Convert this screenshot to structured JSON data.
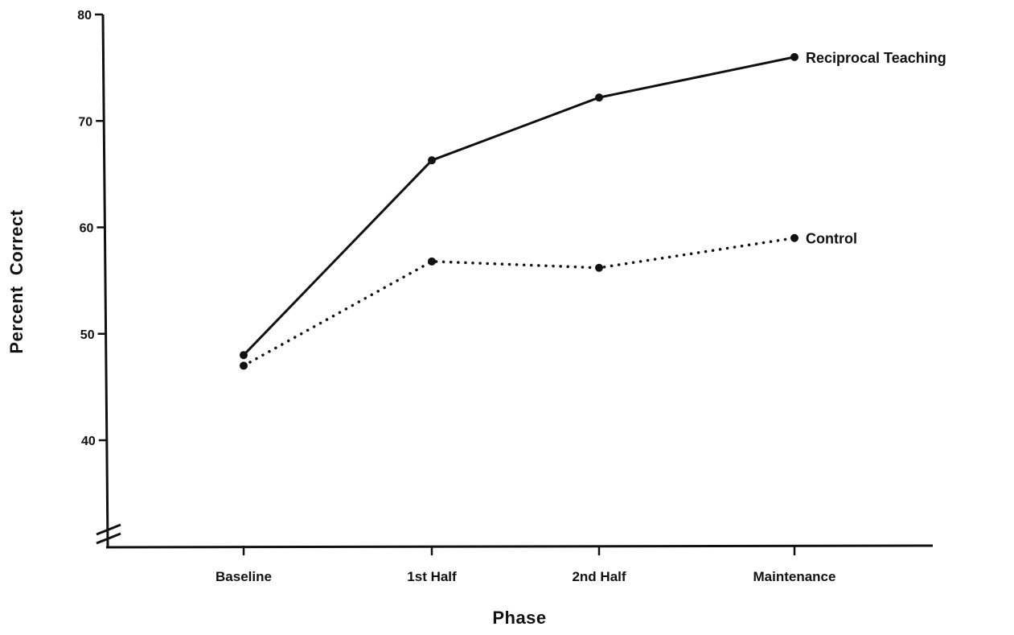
{
  "chart_data": {
    "type": "line",
    "title": "",
    "xlabel": "Phase",
    "ylabel": "Percent  Correct",
    "categories": [
      "Baseline",
      "1st Half",
      "2nd Half",
      "Maintenance"
    ],
    "y_ticks": [
      40,
      50,
      60,
      70,
      80
    ],
    "ylim": [
      30,
      80
    ],
    "y_axis_break": true,
    "grid": false,
    "series": [
      {
        "name": "Reciprocal Teaching",
        "values": [
          48,
          66.3,
          72.2,
          76
        ],
        "style": "solid",
        "color": "#111111"
      },
      {
        "name": "Control",
        "values": [
          47,
          56.8,
          56.2,
          59
        ],
        "style": "dotted",
        "color": "#111111"
      }
    ]
  }
}
